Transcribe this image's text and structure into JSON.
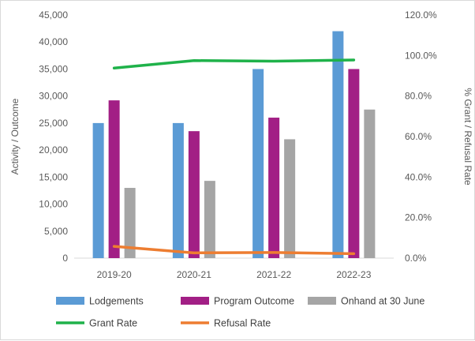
{
  "chart_data": {
    "type": "bar",
    "categories": [
      "2019-20",
      "2020-21",
      "2021-22",
      "2022-23"
    ],
    "series": [
      {
        "name": "Lodgements",
        "kind": "bar",
        "axis": "left",
        "color": "#5b9bd5",
        "values": [
          25000,
          25000,
          35000,
          42000
        ]
      },
      {
        "name": "Program Outcome",
        "kind": "bar",
        "axis": "left",
        "color": "#a21f85",
        "values": [
          29200,
          23500,
          26000,
          35000
        ]
      },
      {
        "name": "Onhand at 30 June",
        "kind": "bar",
        "axis": "left",
        "color": "#a5a5a5",
        "values": [
          13000,
          14300,
          22000,
          27500
        ]
      },
      {
        "name": "Grant Rate",
        "kind": "line",
        "axis": "right",
        "color": "#1fb24a",
        "values": [
          93.8,
          97.5,
          97.2,
          97.8
        ]
      },
      {
        "name": "Refusal Rate",
        "kind": "line",
        "axis": "right",
        "color": "#ed7d31",
        "values": [
          5.8,
          2.6,
          2.8,
          2.2
        ]
      }
    ],
    "ylabel": "Activity / Outcome",
    "y2label": "% Grant / Refusal Rate",
    "ylim": [
      0,
      45000
    ],
    "y2lim": [
      0,
      120
    ],
    "yticks": [
      "0",
      "5,000",
      "10,000",
      "15,000",
      "20,000",
      "25,000",
      "30,000",
      "35,000",
      "40,000",
      "45,000"
    ],
    "y2ticks": [
      "0.0%",
      "20.0%",
      "40.0%",
      "60.0%",
      "80.0%",
      "100.0%",
      "120.0%"
    ],
    "grid": false,
    "legend_position": "bottom"
  }
}
